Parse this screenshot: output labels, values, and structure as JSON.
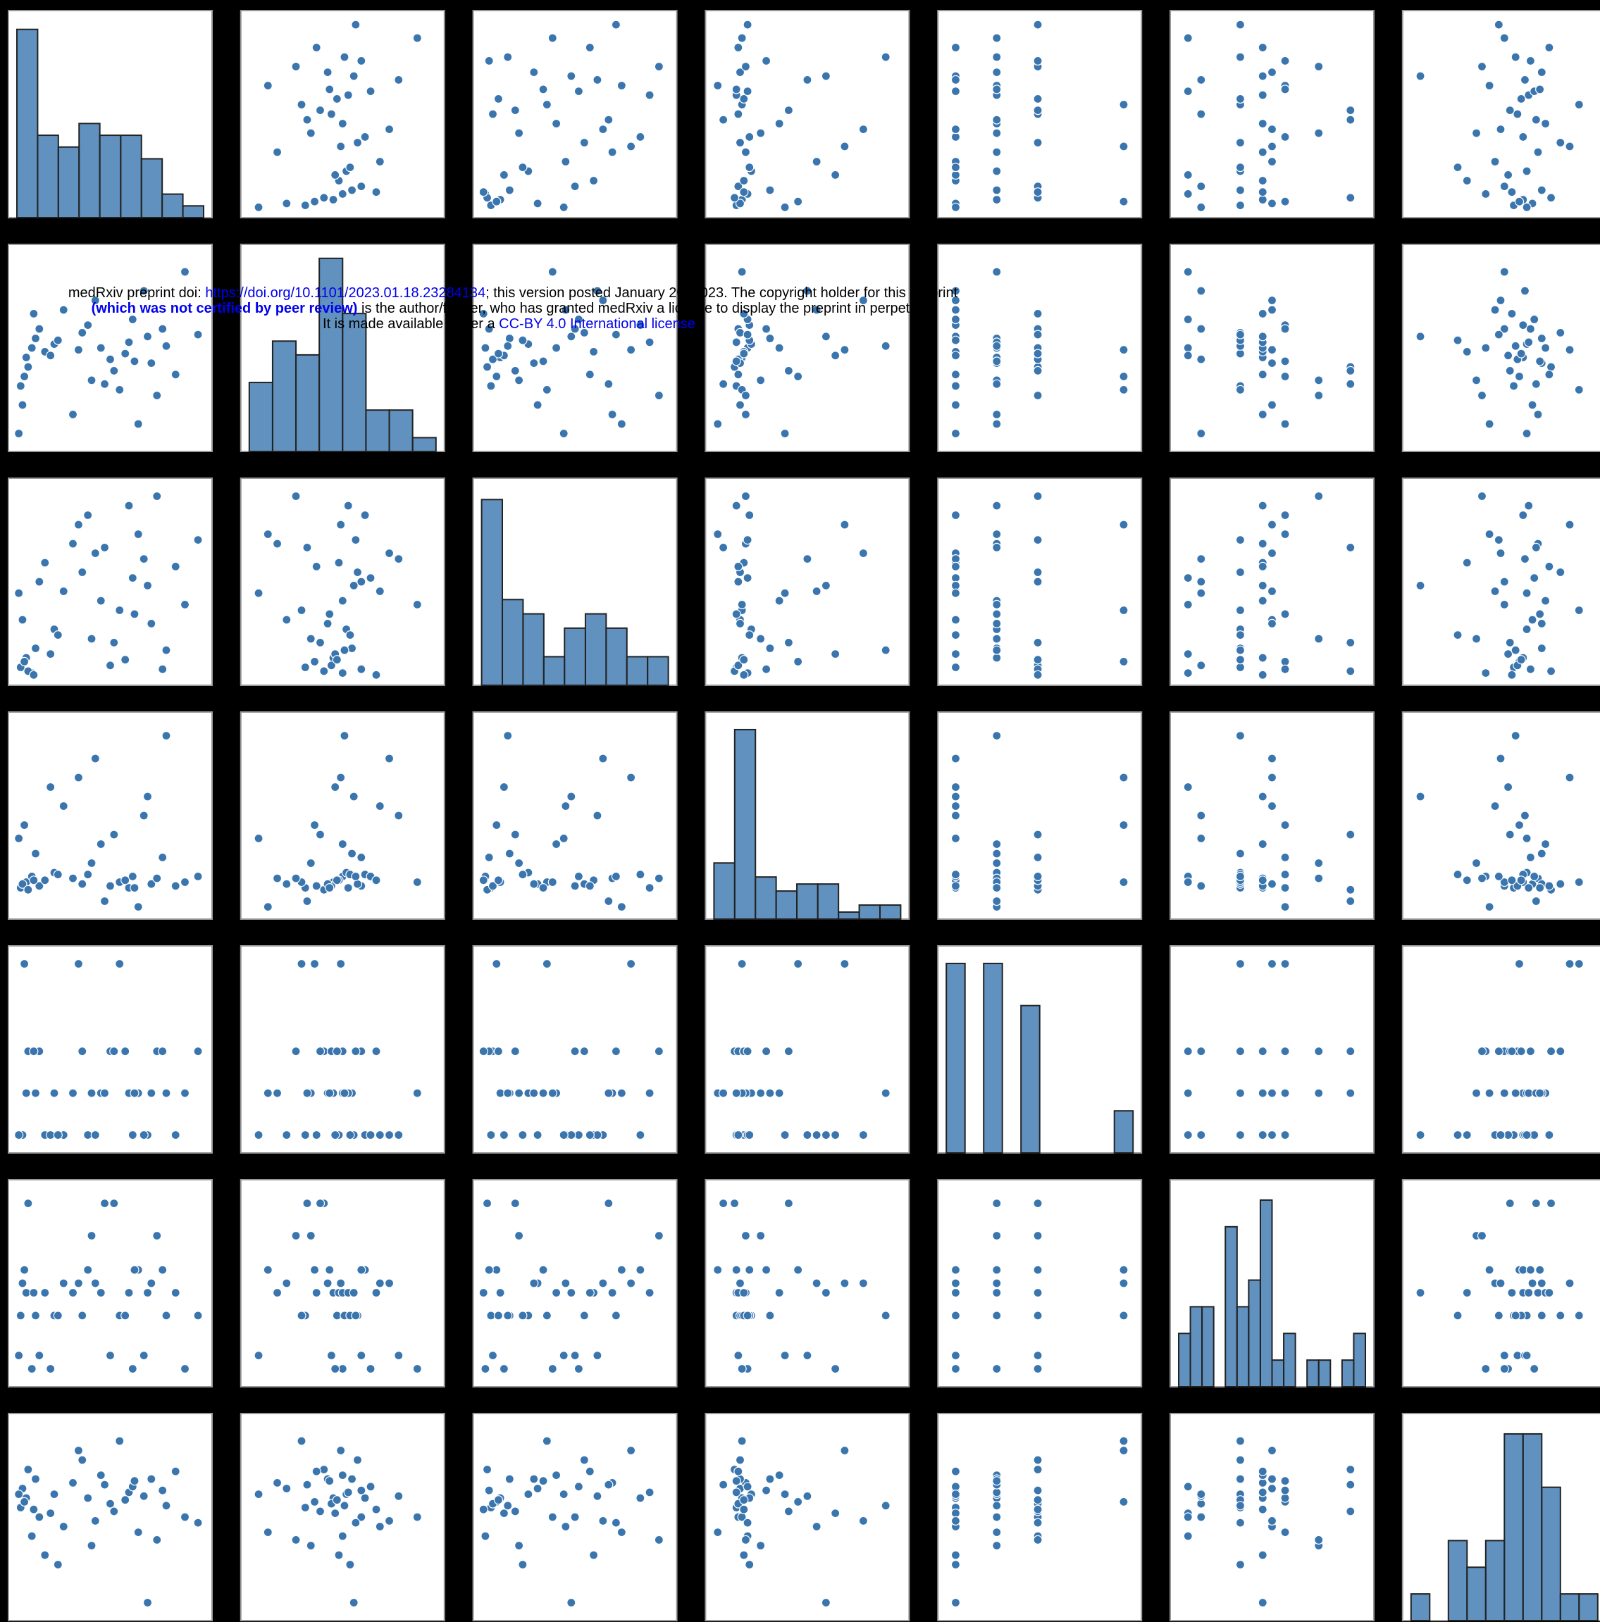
{
  "watermark": {
    "line1": [
      "medRxiv preprint doi: ",
      "https://doi.org/10.1101/2023.01.18.23284134",
      "; this version posted January 20, 2023. The copyright holder for this preprint"
    ],
    "line2": [
      "(which was not certified by peer review)",
      " is the author/funder, who has granted medRxiv a license to display the preprint in perpetuity."
    ],
    "line3": [
      "It is made available under a ",
      "CC-BY 4.0 International license",
      " ."
    ]
  },
  "chart_data": {
    "type": "pairplot",
    "color": "#3a75ae",
    "xlim": [
      0,
      1
    ],
    "ylim": [
      0,
      1
    ],
    "variables": [
      [
        0.02,
        0.05,
        0.08,
        0.03,
        0.1,
        0.12,
        0.04,
        0.15,
        0.2,
        0.06,
        0.25,
        0.3,
        0.18,
        0.35,
        0.4,
        0.38,
        0.45,
        0.5,
        0.42,
        0.55,
        0.6,
        0.52,
        0.62,
        0.65,
        0.58,
        0.7,
        0.72,
        0.68,
        0.75,
        0.8,
        0.85,
        0.78,
        0.9,
        0.33,
        0.22,
        0.47,
        0.09,
        0.01,
        0.63,
        0.97
      ],
      [
        0.3,
        0.45,
        0.5,
        0.2,
        0.55,
        0.6,
        0.35,
        0.48,
        0.52,
        0.4,
        0.7,
        0.15,
        0.46,
        0.58,
        0.33,
        0.62,
        0.5,
        0.44,
        0.75,
        0.28,
        0.53,
        0.38,
        0.65,
        0.1,
        0.47,
        0.56,
        0.42,
        0.8,
        0.25,
        0.51,
        0.36,
        0.6,
        0.9,
        0.49,
        0.54,
        0.31,
        0.68,
        0.05,
        0.43,
        0.57
      ],
      [
        0.05,
        0.1,
        0.02,
        0.3,
        0.15,
        0.5,
        0.08,
        0.6,
        0.25,
        0.03,
        0.45,
        0.7,
        0.12,
        0.55,
        0.2,
        0.85,
        0.4,
        0.06,
        0.65,
        0.35,
        0.9,
        0.18,
        0.52,
        0.75,
        0.09,
        0.48,
        0.28,
        0.62,
        0.95,
        0.14,
        0.58,
        0.04,
        0.38,
        0.8,
        0.22,
        0.68,
        0.01,
        0.44,
        0.33,
        0.72
      ],
      [
        0.12,
        0.15,
        0.18,
        0.14,
        0.3,
        0.13,
        0.45,
        0.16,
        0.2,
        0.11,
        0.55,
        0.17,
        0.65,
        0.14,
        0.25,
        0.19,
        0.35,
        0.13,
        0.8,
        0.15,
        0.12,
        0.4,
        0.18,
        0.02,
        0.16,
        0.6,
        0.14,
        0.5,
        0.17,
        0.92,
        0.13,
        0.28,
        0.15,
        0.7,
        0.19,
        0.05,
        0.16,
        0.38,
        0.12,
        0.18
      ],
      [
        0.05,
        0.27,
        0.49,
        0.05,
        0.27,
        0.49,
        0.95,
        0.05,
        0.27,
        0.49,
        0.05,
        0.27,
        0.05,
        0.49,
        0.27,
        0.05,
        0.27,
        0.49,
        0.05,
        0.95,
        0.27,
        0.49,
        0.05,
        0.27,
        0.49,
        0.05,
        0.27,
        0.05,
        0.49,
        0.27,
        0.05,
        0.49,
        0.27,
        0.95,
        0.05,
        0.27,
        0.49,
        0.05,
        0.27,
        0.49
      ],
      [
        0.33,
        0.45,
        0.05,
        0.5,
        0.33,
        0.12,
        0.57,
        0.45,
        0.33,
        0.92,
        0.5,
        0.45,
        0.05,
        0.33,
        0.75,
        0.57,
        0.45,
        0.12,
        0.5,
        0.33,
        0.45,
        0.92,
        0.05,
        0.57,
        0.33,
        0.45,
        0.5,
        0.12,
        0.75,
        0.33,
        0.45,
        0.57,
        0.05,
        0.5,
        0.33,
        0.92,
        0.45,
        0.12,
        0.57,
        0.33
      ],
      [
        0.55,
        0.6,
        0.4,
        0.65,
        0.7,
        0.5,
        0.58,
        0.3,
        0.62,
        0.75,
        0.45,
        0.68,
        0.52,
        0.8,
        0.35,
        0.6,
        0.72,
        0.57,
        0.48,
        0.9,
        0.63,
        0.53,
        0.66,
        0.42,
        0.59,
        0.05,
        0.7,
        0.61,
        0.38,
        0.56,
        0.74,
        0.64,
        0.5,
        0.85,
        0.25,
        0.67,
        0.54,
        0.62,
        0.69,
        0.47
      ]
    ],
    "histograms": [
      {
        "bins": [
          0,
          0.111,
          0.222,
          0.333,
          0.444,
          0.556,
          0.667,
          0.778,
          0.889,
          1
        ],
        "counts": [
          16,
          7,
          6,
          8,
          7,
          7,
          5,
          2,
          1
        ],
        "ylim": [
          0,
          17
        ]
      },
      {
        "bins": [
          0,
          0.125,
          0.25,
          0.375,
          0.5,
          0.625,
          0.75,
          0.875,
          1
        ],
        "counts": [
          5,
          8,
          7,
          14,
          10,
          3,
          3,
          1
        ],
        "ylim": [
          0,
          14.5
        ]
      },
      {
        "bins": [
          0,
          0.111,
          0.222,
          0.333,
          0.444,
          0.556,
          0.667,
          0.778,
          0.889,
          1
        ],
        "counts": [
          13,
          6,
          5,
          2,
          4,
          5,
          4,
          2,
          2
        ],
        "ylim": [
          0,
          14
        ]
      },
      {
        "bins": [
          0,
          0.111,
          0.222,
          0.333,
          0.444,
          0.556,
          0.667,
          0.778,
          0.889,
          1
        ],
        "counts": [
          8,
          27,
          6,
          4,
          5,
          5,
          1,
          2,
          2
        ],
        "ylim": [
          0,
          28.5
        ]
      },
      {
        "bins": [
          0,
          0.1,
          0.2,
          0.3,
          0.4,
          0.5,
          0.6,
          0.7,
          0.8,
          0.9,
          1
        ],
        "counts": [
          18,
          0,
          18,
          0,
          14,
          0,
          0,
          0,
          0,
          4
        ],
        "ylim": [
          0,
          19
        ]
      },
      {
        "bins": [
          0,
          0.0625,
          0.125,
          0.1875,
          0.25,
          0.3125,
          0.375,
          0.4375,
          0.5,
          0.5625,
          0.625,
          0.6875,
          0.75,
          0.8125,
          0.875,
          0.9375,
          1
        ],
        "counts": [
          2,
          3,
          3,
          0,
          6,
          3,
          4,
          7,
          1,
          2,
          0,
          1,
          1,
          0,
          1,
          2
        ],
        "ylim": [
          0,
          7.5
        ]
      },
      {
        "bins": [
          0,
          0.1,
          0.2,
          0.3,
          0.4,
          0.5,
          0.6,
          0.7,
          0.8,
          0.9,
          1
        ],
        "counts": [
          1,
          0,
          3,
          2,
          3,
          7,
          7,
          5,
          1,
          1
        ],
        "ylim": [
          0,
          7.5
        ]
      }
    ]
  }
}
